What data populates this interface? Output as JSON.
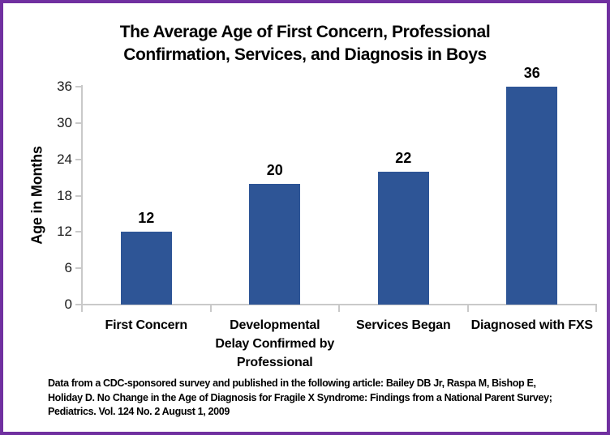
{
  "page": {
    "border_color": "#7030A0",
    "background": "#FFFFFF"
  },
  "title_lines": [
    "The Average Age of First Concern, Professional",
    "Confirmation, Services, and Diagnosis in Boys"
  ],
  "chart_data": {
    "type": "bar",
    "title": "The Average Age of First Concern, Professional Confirmation, Services, and Diagnosis in Boys",
    "categories": [
      "First Concern",
      "Developmental Delay Confirmed by Professional",
      "Services Began",
      "Diagnosed with FXS"
    ],
    "category_label_lines": [
      [
        "First Concern"
      ],
      [
        "Developmental",
        "Delay Confirmed by",
        "Professional"
      ],
      [
        "Services Began"
      ],
      [
        "Diagnosed with FXS"
      ]
    ],
    "values": [
      12,
      20,
      22,
      36
    ],
    "data_labels_shown": true,
    "xlabel": "",
    "ylabel": "Age in Months",
    "ylim": [
      0,
      36
    ],
    "yticks": [
      0,
      6,
      12,
      18,
      24,
      30,
      36
    ],
    "grid": false,
    "legend": "none",
    "bar_color": "#2E5596",
    "axis_color": "#C9C9C9"
  },
  "footer_lines": [
    "Data from a CDC-sponsored survey and published in the following article: Bailey DB Jr, Raspa M, Bishop E,",
    "Holiday D. No Change in the Age of Diagnosis for Fragile X Syndrome: Findings from a National Parent Survey;",
    "Pediatrics. Vol. 124 No. 2 August 1, 2009"
  ],
  "footer_text": "Data from a CDC-sponsored survey and published in the following article: Bailey DB Jr, Raspa M, Bishop E, Holiday D. No Change in the Age of Diagnosis for Fragile X Syndrome: Findings from a National Parent Survey; Pediatrics. Vol. 124 No. 2 August 1, 2009"
}
